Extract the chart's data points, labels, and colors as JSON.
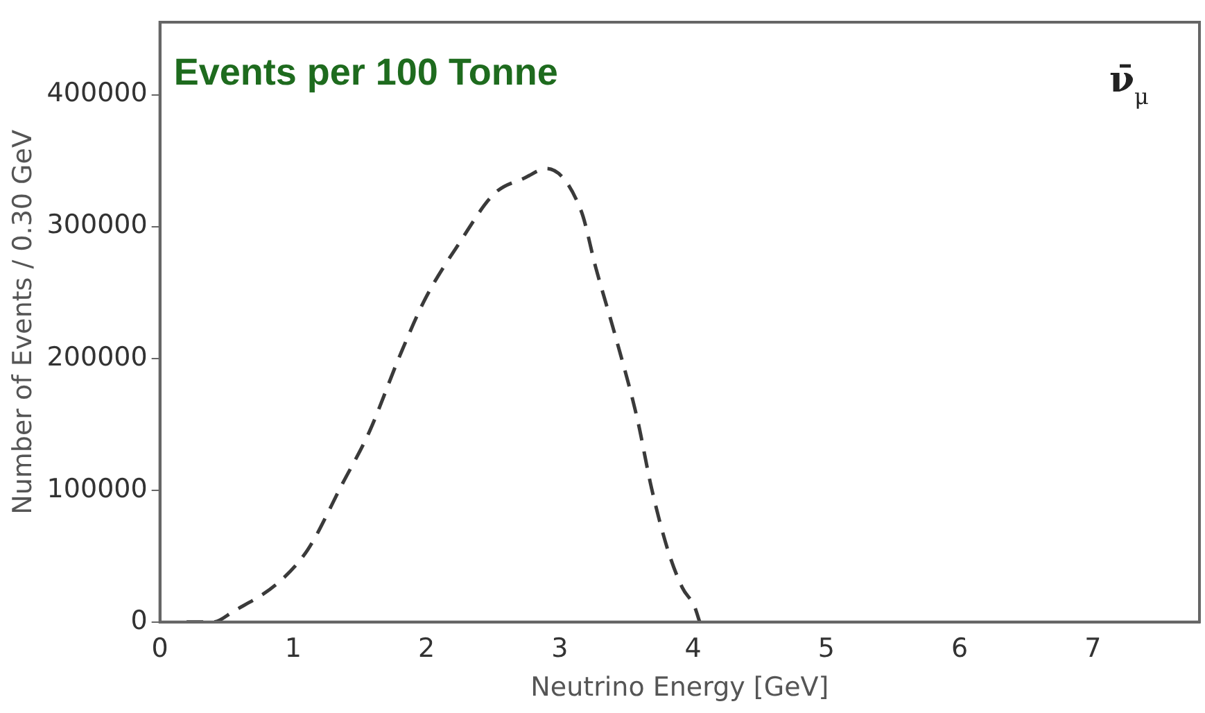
{
  "chart_data": {
    "type": "line",
    "title": "Events per 100 Tonne",
    "xlabel": "Neutrino Energy [GeV]",
    "ylabel": "Number of Events / 0.30 GeV",
    "annotations": [
      "ν̄$_{μ}$"
    ],
    "xlim": [
      0,
      7.8
    ],
    "xticks": [
      0,
      1,
      2,
      3,
      4,
      5,
      6,
      7
    ],
    "ylim": [
      0,
      455000
    ],
    "yticks": [
      0,
      100000,
      200000,
      300000,
      400000
    ],
    "grid": false,
    "legend": false,
    "marker": "none",
    "line_style": "dashed",
    "series": [
      {
        "color": "#3a3a3a",
        "x": [
          0.2,
          0.4,
          0.55,
          0.89,
          1.11,
          1.37,
          1.57,
          1.8,
          1.99,
          2.25,
          2.51,
          2.74,
          2.9,
          3.16,
          3.27,
          3.42,
          3.58,
          3.69,
          3.81,
          3.92,
          4.01,
          4.05
        ],
        "values": [
          0,
          0,
          8000,
          30000,
          55000,
          105000,
          144000,
          202000,
          245000,
          288000,
          325000,
          337000,
          344000,
          312000,
          269000,
          216000,
          155000,
          101000,
          55000,
          26000,
          12000,
          0
        ]
      }
    ]
  }
}
